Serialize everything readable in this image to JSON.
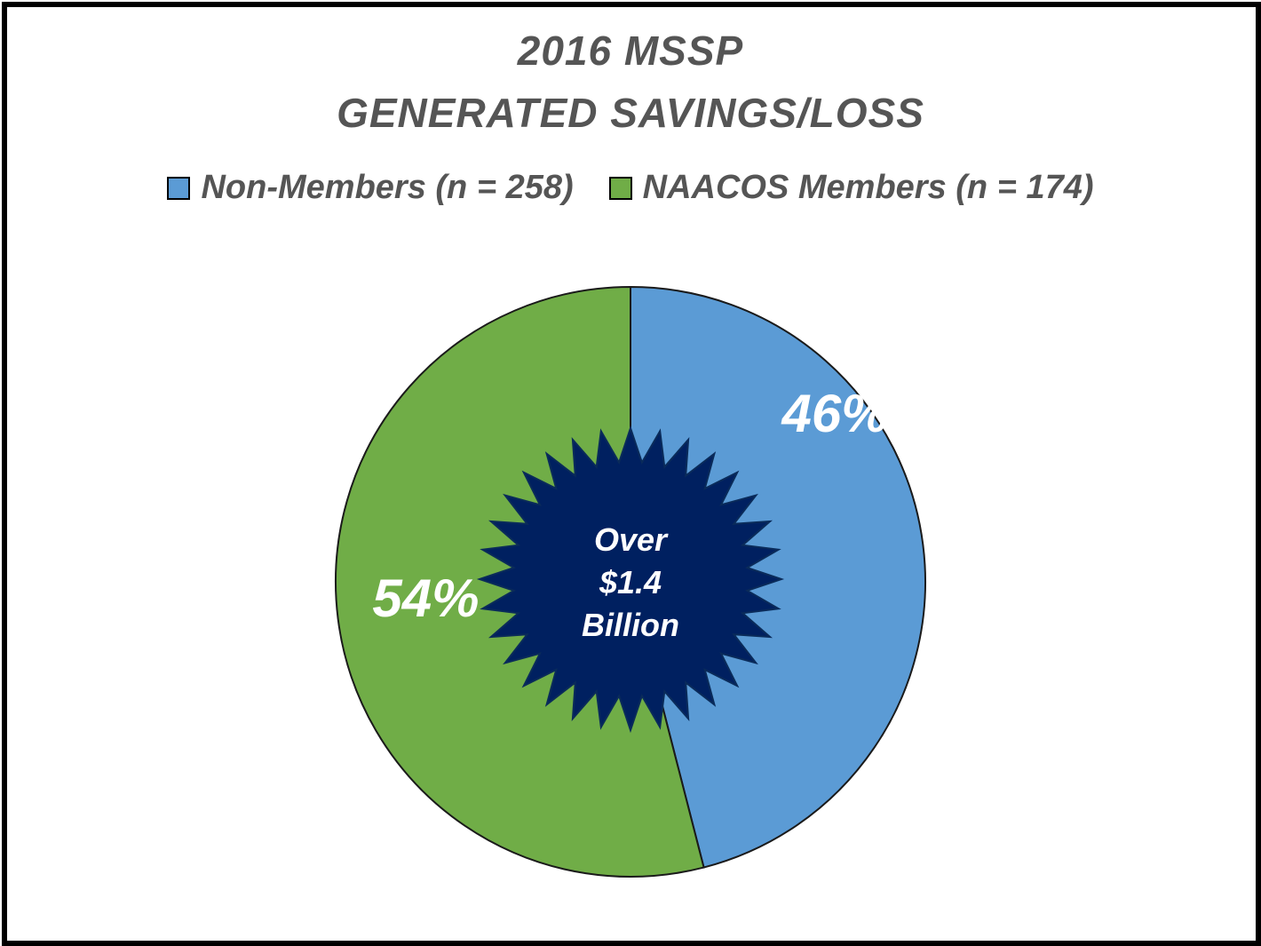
{
  "chart_data": {
    "type": "pie",
    "title": "2016 MSSP",
    "subtitle": "GENERATED SAVINGS/LOSS",
    "legend_position": "top",
    "series": [
      {
        "name": "Non-Members (n = 258)",
        "value": 46,
        "label": "46%",
        "color": "#5b9bd5"
      },
      {
        "name": "NAACOS Members (n = 174)",
        "value": 54,
        "label": "54%",
        "color": "#70ad47"
      }
    ],
    "annotation": {
      "lines": [
        "Over",
        "$1.4",
        "Billion"
      ],
      "color": "#002060"
    }
  }
}
